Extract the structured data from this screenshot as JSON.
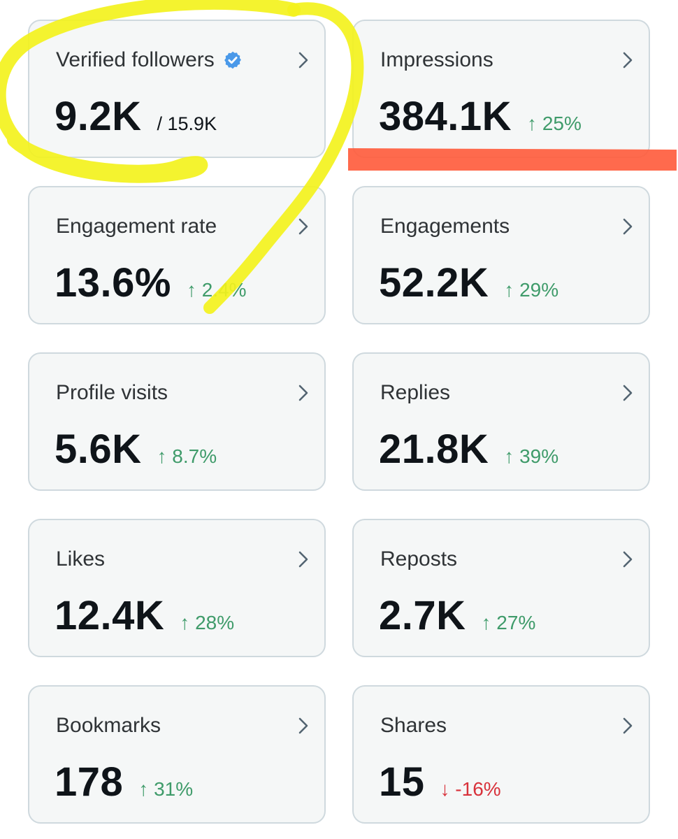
{
  "colors": {
    "positive": "#3f9b6a",
    "negative": "#d8323b",
    "verified_badge": "#4a99e9",
    "highlight_yellow": "#f3f21d",
    "highlight_red": "#ff5a3a"
  },
  "cards": [
    {
      "label": "Verified followers",
      "value": "9.2K",
      "sub": "/ 15.9K",
      "icon": "verified-badge-icon"
    },
    {
      "label": "Impressions",
      "value": "384.1K",
      "arrow": "↑",
      "change": "25%",
      "direction": "up"
    },
    {
      "label": "Engagement rate",
      "value": "13.6%",
      "arrow": "↑",
      "change": "2.4%",
      "direction": "up"
    },
    {
      "label": "Engagements",
      "value": "52.2K",
      "arrow": "↑",
      "change": "29%",
      "direction": "up"
    },
    {
      "label": "Profile visits",
      "value": "5.6K",
      "arrow": "↑",
      "change": "8.7%",
      "direction": "up"
    },
    {
      "label": "Replies",
      "value": "21.8K",
      "arrow": "↑",
      "change": "39%",
      "direction": "up"
    },
    {
      "label": "Likes",
      "value": "12.4K",
      "arrow": "↑",
      "change": "28%",
      "direction": "up"
    },
    {
      "label": "Reposts",
      "value": "2.7K",
      "arrow": "↑",
      "change": "27%",
      "direction": "up"
    },
    {
      "label": "Bookmarks",
      "value": "178",
      "arrow": "↑",
      "change": "31%",
      "direction": "up"
    },
    {
      "label": "Shares",
      "value": "15",
      "arrow": "↓",
      "change": "-16%",
      "direction": "down"
    }
  ]
}
